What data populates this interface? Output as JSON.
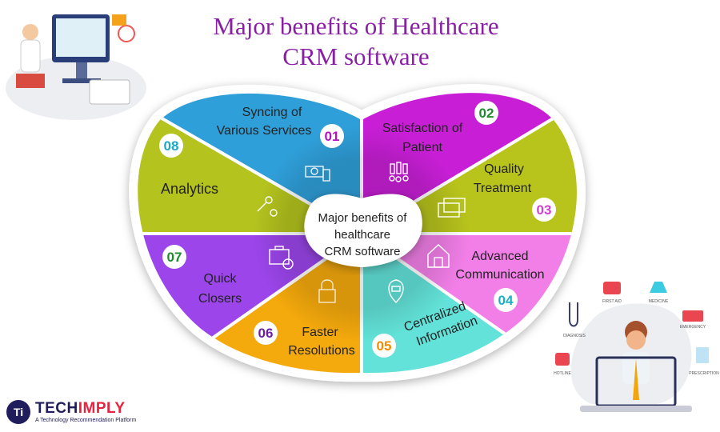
{
  "title": {
    "line1": "Major benefits of Healthcare",
    "line2": "CRM software"
  },
  "center": {
    "line1": "Major benefits of",
    "line2": "healthcare",
    "line3": "CRM software"
  },
  "sectors": [
    {
      "number": "01",
      "line1": "Syncing of",
      "line2": "Various Services",
      "color": "#c81fd6",
      "num_color": "#b014c0",
      "icon": "money-icon"
    },
    {
      "number": "02",
      "line1": "Satisfaction of",
      "line2": "Patient",
      "color": "#b8c41c",
      "num_color": "#1f8a2e",
      "icon": "medals-icon"
    },
    {
      "number": "03",
      "line1": "Quality",
      "line2": "Treatment",
      "color": "#f27fe8",
      "num_color": "#d23fd0",
      "icon": "cards-icon"
    },
    {
      "number": "04",
      "line1": "Advanced",
      "line2": "Communication",
      "color": "#62e2d8",
      "num_color": "#19b2c4",
      "icon": "building-icon"
    },
    {
      "number": "05",
      "line1": "Centralized",
      "line2": "Information",
      "color": "#f4a90c",
      "num_color": "#f08c00",
      "icon": "location-pin-icon"
    },
    {
      "number": "06",
      "line1": "Faster",
      "line2": "Resolutions",
      "color": "#9b45ea",
      "num_color": "#6b1fa8",
      "icon": "lock-shield-icon"
    },
    {
      "number": "07",
      "line1": "Quick",
      "line2": "Closers",
      "color": "#b4c31e",
      "num_color": "#1f8a2e",
      "icon": "briefcase-clock-icon"
    },
    {
      "number": "08",
      "line1": "Analytics",
      "line2": "",
      "color": "#2f9fd9",
      "num_color": "#19a8c4",
      "icon": "key-gear-icon"
    }
  ],
  "doctor_illustration": {
    "labels": [
      "FIRST AID",
      "MEDICINE",
      "EMERGENCY",
      "DIAGNOSIS",
      "HOTLINE",
      "PRESCRIPTION"
    ]
  },
  "logo": {
    "brand_a": "TECH",
    "brand_b": "IMPLY",
    "tagline": "A Technology Recommendation Platform",
    "mark": "Ti"
  }
}
